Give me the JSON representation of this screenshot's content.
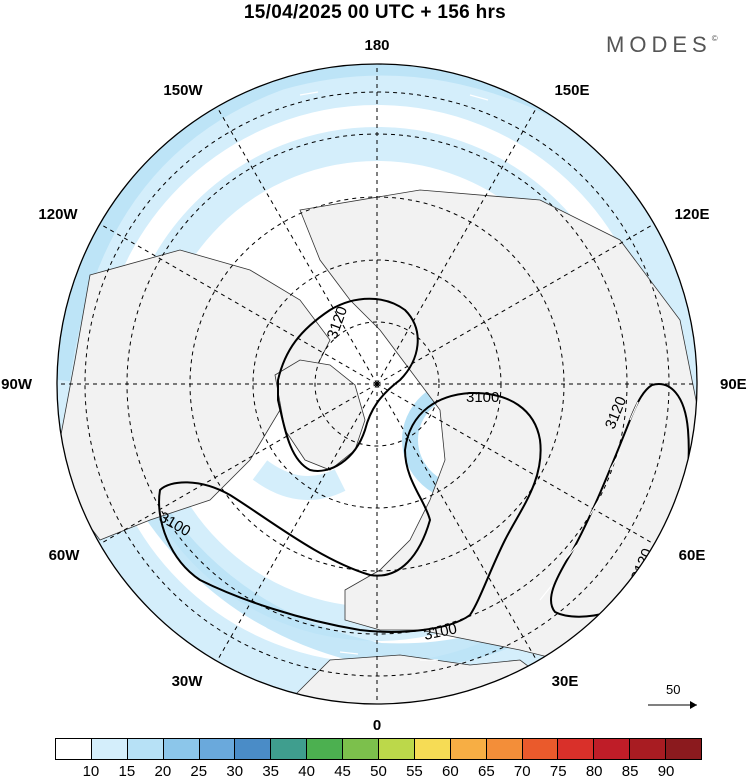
{
  "title": "15/04/2025  00 UTC  + 156 hrs",
  "brand": {
    "name": "MODES",
    "mark": "©"
  },
  "map": {
    "projection": "north-polar-stereographic",
    "longitude_labels": [
      "180",
      "150E",
      "120E",
      "90E",
      "60E",
      "30E",
      "0",
      "30W",
      "60W",
      "90W",
      "120W",
      "150W"
    ],
    "contour_labels": [
      "3120",
      "3100",
      "3100",
      "3120",
      "3120",
      "3100",
      "3100"
    ],
    "contour_color": "#000000"
  },
  "reference_vector": {
    "label": "50"
  },
  "colorbar": {
    "labels": [
      "10",
      "15",
      "20",
      "25",
      "30",
      "35",
      "40",
      "45",
      "50",
      "55",
      "60",
      "65",
      "70",
      "75",
      "80",
      "85",
      "90"
    ],
    "colors": [
      "#ffffff",
      "#d4eefb",
      "#b7e1f6",
      "#8cc6ea",
      "#6aa9dc",
      "#4a8cc7",
      "#3f9e8e",
      "#4cb050",
      "#7cc04c",
      "#bcd84a",
      "#f6dc55",
      "#f7ae44",
      "#f38e39",
      "#ea5a2c",
      "#d9302a",
      "#bf1d28",
      "#a81c22",
      "#8b1a1e"
    ]
  }
}
